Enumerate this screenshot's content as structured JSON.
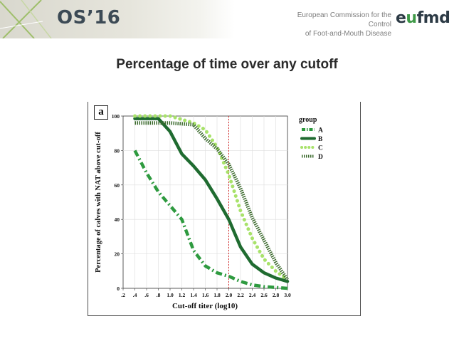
{
  "header": {
    "conference_logo": "OS’16",
    "org_text_line1": "European Commission for the Control",
    "org_text_line2": "of Foot-and-Mouth Disease",
    "org_logo_main": "e",
    "org_logo_accent": "u",
    "org_logo_rest": "fmd"
  },
  "slide": {
    "title": "Percentage of time over any cutoff",
    "panel_label": "a"
  },
  "chart_data": {
    "type": "line",
    "xlabel": "Cut-off titer (log10)",
    "ylabel": "Percentage of calves with NAT above cut-off",
    "xlim": [
      0.2,
      3.0
    ],
    "ylim": [
      0,
      100
    ],
    "x_ticks": [
      ".2",
      ".4",
      ".6",
      ".8",
      "1.0",
      "1.2",
      "1.4",
      "1.6",
      "1.8",
      "2.0",
      "2.2",
      "2.4",
      "2.6",
      "2.8",
      "3.0"
    ],
    "y_ticks": [
      "0",
      "20",
      "40",
      "60",
      "80",
      "100"
    ],
    "reference_line_x": 2.0,
    "grid": true,
    "legend": {
      "title": "group",
      "position": "right"
    },
    "series": [
      {
        "name": "A",
        "color": "#2e9a3f",
        "style": "dashdot",
        "x": [
          0.4,
          0.6,
          0.8,
          1.0,
          1.2,
          1.4,
          1.6,
          1.8,
          2.0,
          2.2,
          2.4,
          2.6,
          2.8,
          3.0
        ],
        "y": [
          80,
          67,
          56,
          48,
          40,
          22,
          13,
          9,
          7,
          4,
          2,
          1,
          0.5,
          0
        ]
      },
      {
        "name": "B",
        "color": "#1f6b30",
        "style": "solid",
        "x": [
          0.4,
          0.6,
          0.8,
          1.0,
          1.2,
          1.4,
          1.6,
          1.8,
          2.0,
          2.2,
          2.4,
          2.6,
          2.8,
          3.0
        ],
        "y": [
          98.5,
          98.5,
          98.5,
          91,
          78,
          71,
          63,
          52,
          40,
          24,
          14,
          9,
          6,
          4
        ]
      },
      {
        "name": "C",
        "color": "#a8e26a",
        "style": "dotted",
        "x": [
          0.4,
          0.6,
          0.8,
          1.0,
          1.2,
          1.4,
          1.6,
          1.8,
          2.0,
          2.2,
          2.4,
          2.6,
          2.8,
          3.0
        ],
        "y": [
          100,
          100,
          100,
          100,
          98,
          96,
          92,
          82,
          66,
          45,
          29,
          17,
          10,
          5
        ]
      },
      {
        "name": "D",
        "color": "#3c6b2e",
        "style": "dense",
        "x": [
          0.4,
          0.6,
          0.8,
          1.0,
          1.2,
          1.4,
          1.6,
          1.8,
          2.0,
          2.2,
          2.4,
          2.6,
          2.8,
          3.0
        ],
        "y": [
          96,
          96,
          96,
          96,
          95.5,
          95,
          87,
          81,
          72,
          58,
          41,
          28,
          15,
          5
        ]
      }
    ]
  }
}
